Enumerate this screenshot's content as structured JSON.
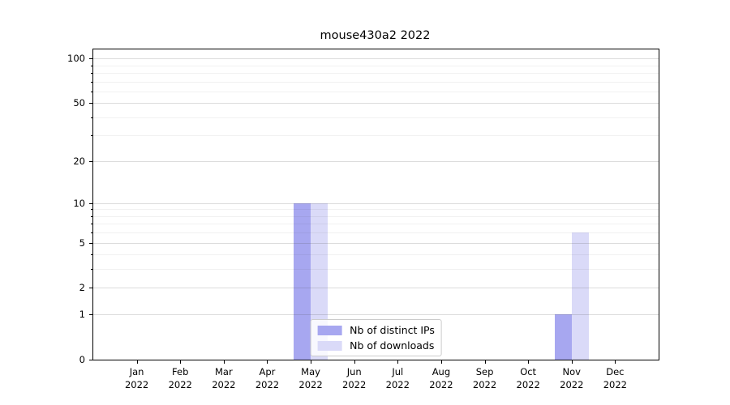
{
  "chart_data": {
    "type": "bar",
    "title": "mouse430a2 2022",
    "xlabel": "",
    "ylabel": "",
    "categories": [
      "Jan 2022",
      "Feb 2022",
      "Mar 2022",
      "Apr 2022",
      "May 2022",
      "Jun 2022",
      "Jul 2022",
      "Aug 2022",
      "Sep 2022",
      "Oct 2022",
      "Nov 2022",
      "Dec 2022"
    ],
    "series": [
      {
        "name": "Nb of distinct IPs",
        "color": "#a7a7f0",
        "values": [
          0,
          0,
          0,
          0,
          10,
          0,
          0,
          0,
          0,
          0,
          1,
          0
        ]
      },
      {
        "name": "Nb of downloads",
        "color": "#dadaf8",
        "values": [
          0,
          0,
          0,
          0,
          10,
          0,
          0,
          0,
          0,
          0,
          6,
          0
        ]
      }
    ],
    "yscale": "log1p",
    "ylim": [
      0,
      115
    ],
    "yticks": [
      0,
      1,
      2,
      5,
      10,
      20,
      50,
      100
    ],
    "yticks_minor": [
      3,
      4,
      6,
      7,
      8,
      9,
      30,
      40,
      60,
      70,
      80,
      90
    ],
    "grid": true,
    "legend_position": "lower center inside",
    "colors": {
      "grid_major": "#d6d6d6",
      "grid_minor": "#efefef",
      "spine": "#000000",
      "background": "#ffffff"
    }
  }
}
